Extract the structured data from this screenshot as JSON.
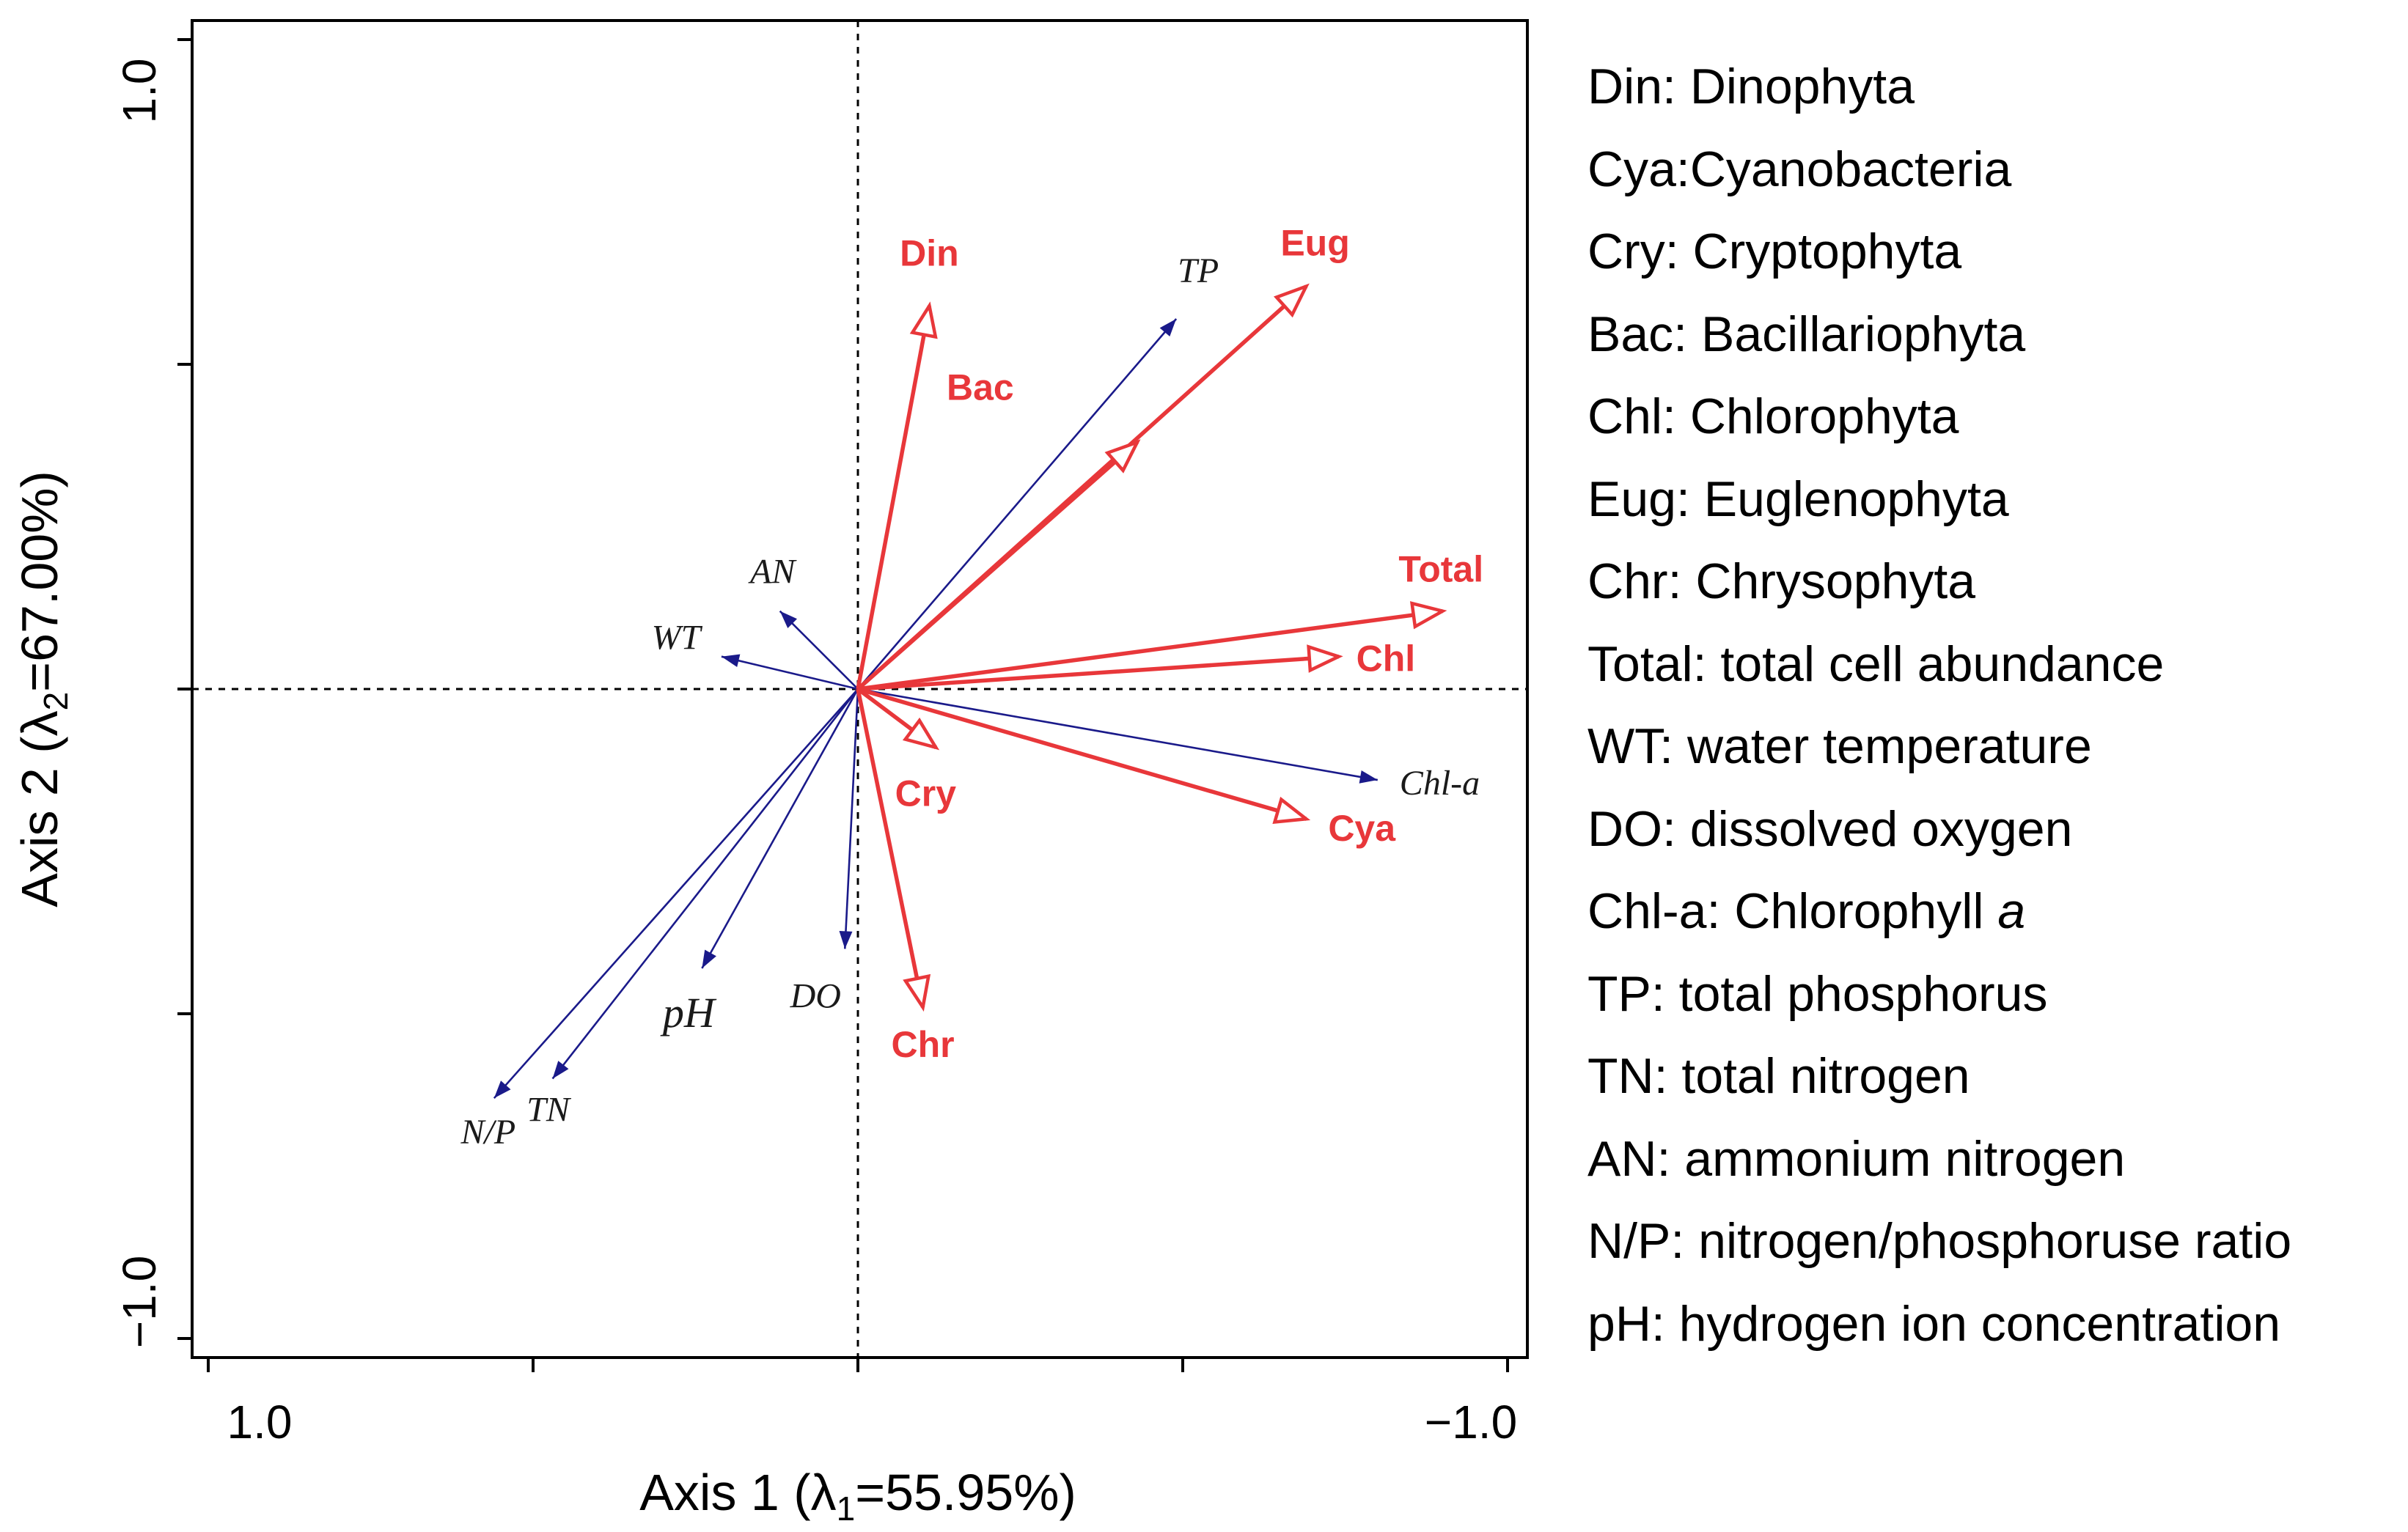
{
  "chart_data": {
    "type": "biplot",
    "xlabel": "Axis 1 (λ1=55.95%)",
    "xlabel_parts": {
      "main": "Axis 1 (λ",
      "sub": "1",
      "rest": "=55.95%)"
    },
    "ylabel": "Axis 2 (λ2=67.00%)",
    "ylabel_parts": {
      "main": "Axis 2 (λ",
      "sub": "2",
      "rest": "=67.00%)"
    },
    "xlim": [
      1.0,
      -1.0
    ],
    "ylim": [
      -1.0,
      1.0
    ],
    "x_tick_labels": [
      "1.0",
      "−1.0"
    ],
    "y_tick_labels": [
      "1.0",
      "−1.0"
    ],
    "origin_lines": "dashed",
    "colors": {
      "environment": "#1a1a8a",
      "taxa": "#e8373a",
      "label_env": "#1a1a1a",
      "label_taxa": "#e8373a"
    },
    "environment_vectors": [
      {
        "name": "TP",
        "x": -0.49,
        "y": 0.57
      },
      {
        "name": "AN",
        "x": 0.12,
        "y": 0.12
      },
      {
        "name": "WT",
        "x": 0.21,
        "y": 0.05
      },
      {
        "name": "Chl-a",
        "x": -0.8,
        "y": -0.14
      },
      {
        "name": "DO",
        "x": 0.02,
        "y": -0.4
      },
      {
        "name": "pH",
        "x": 0.24,
        "y": -0.43
      },
      {
        "name": "TN",
        "x": 0.47,
        "y": -0.6
      },
      {
        "name": "N/P",
        "x": 0.56,
        "y": -0.63
      }
    ],
    "taxa_vectors": [
      {
        "name": "Din",
        "x": -0.11,
        "y": 0.59
      },
      {
        "name": "Eug",
        "x": -0.69,
        "y": 0.62
      },
      {
        "name": "Bac",
        "x": -0.43,
        "y": 0.38
      },
      {
        "name": "Total",
        "x": -0.9,
        "y": 0.12
      },
      {
        "name": "Chl",
        "x": -0.74,
        "y": 0.05
      },
      {
        "name": "Cry",
        "x": -0.12,
        "y": -0.09
      },
      {
        "name": "Cya",
        "x": -0.69,
        "y": -0.2
      },
      {
        "name": "Chr",
        "x": -0.1,
        "y": -0.49
      }
    ]
  },
  "legend": [
    {
      "text": "Din: Dinophyta"
    },
    {
      "text": "Cya:Cyanobacteria"
    },
    {
      "text": "Cry: Cryptophyta"
    },
    {
      "text": "Bac: Bacillariophyta"
    },
    {
      "text": "Chl: Chlorophyta"
    },
    {
      "text": "Eug: Euglenophyta"
    },
    {
      "text": "Chr: Chrysophyta"
    },
    {
      "text": "Total: total cell abundance"
    },
    {
      "text": "WT: water temperature"
    },
    {
      "text": "DO: dissolved oxygen"
    },
    {
      "text": "Chl-a: Chlorophyll ",
      "italic": "a"
    },
    {
      "text": "TP: total phosphorus"
    },
    {
      "text": "TN: total nitrogen"
    },
    {
      "text": "AN: ammonium nitrogen"
    },
    {
      "text": "N/P: nitrogen/phosphoruse ratio"
    },
    {
      "text": "pH: hydrogen ion concentration"
    }
  ]
}
